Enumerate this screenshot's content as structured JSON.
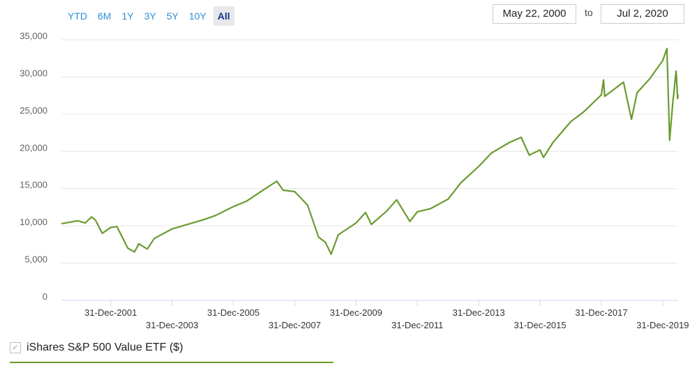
{
  "range_buttons": [
    "YTD",
    "6M",
    "1Y",
    "3Y",
    "5Y",
    "10Y",
    "All"
  ],
  "active_range": "All",
  "date_range": {
    "from": "May 22, 2000",
    "to_label": "to",
    "to": "Jul 2, 2020"
  },
  "legend": {
    "label": "iShares S&P 500 Value ETF ($)",
    "checked": true
  },
  "colors": {
    "line": "#6a9a2f",
    "grid": "#e6e6e6",
    "button": "#2a8fd6",
    "active_button": "#1c2f88"
  },
  "chart_data": {
    "type": "line",
    "title": "",
    "xlabel": "",
    "ylabel": "",
    "ylim": [
      0,
      35000
    ],
    "yticks": [
      0,
      5000,
      10000,
      15000,
      20000,
      25000,
      30000,
      35000
    ],
    "ytick_labels": [
      "0",
      "5,000",
      "10,000",
      "15,000",
      "20,000",
      "25,000",
      "30,000",
      "35,000"
    ],
    "xlim": [
      "2000-05-22",
      "2020-07-02"
    ],
    "xticks": [
      {
        "date": "2001-12-31",
        "label": "31-Dec-2001",
        "row": 1
      },
      {
        "date": "2003-12-31",
        "label": "31-Dec-2003",
        "row": 2
      },
      {
        "date": "2005-12-31",
        "label": "31-Dec-2005",
        "row": 1
      },
      {
        "date": "2007-12-31",
        "label": "31-Dec-2007",
        "row": 2
      },
      {
        "date": "2009-12-31",
        "label": "31-Dec-2009",
        "row": 1
      },
      {
        "date": "2011-12-31",
        "label": "31-Dec-2011",
        "row": 2
      },
      {
        "date": "2013-12-31",
        "label": "31-Dec-2013",
        "row": 1
      },
      {
        "date": "2015-12-31",
        "label": "31-Dec-2015",
        "row": 2
      },
      {
        "date": "2017-12-31",
        "label": "31-Dec-2017",
        "row": 1
      },
      {
        "date": "2019-12-31",
        "label": "31-Dec-2019",
        "row": 2
      }
    ],
    "series": [
      {
        "name": "iShares S&P 500 Value ETF ($)",
        "points": [
          [
            "2000-05-22",
            10300
          ],
          [
            "2000-09-01",
            10500
          ],
          [
            "2000-12-01",
            10700
          ],
          [
            "2001-03-01",
            10400
          ],
          [
            "2001-05-15",
            11200
          ],
          [
            "2001-07-01",
            10800
          ],
          [
            "2001-09-21",
            9000
          ],
          [
            "2001-12-31",
            9800
          ],
          [
            "2002-03-15",
            9900
          ],
          [
            "2002-07-23",
            7000
          ],
          [
            "2002-10-09",
            6500
          ],
          [
            "2002-12-01",
            7600
          ],
          [
            "2003-03-11",
            6900
          ],
          [
            "2003-06-01",
            8300
          ],
          [
            "2003-12-31",
            9600
          ],
          [
            "2004-06-01",
            10100
          ],
          [
            "2004-12-31",
            10800
          ],
          [
            "2005-06-01",
            11400
          ],
          [
            "2005-12-31",
            12600
          ],
          [
            "2006-06-01",
            13300
          ],
          [
            "2006-12-31",
            14900
          ],
          [
            "2007-06-01",
            16000
          ],
          [
            "2007-08-15",
            14800
          ],
          [
            "2007-12-31",
            14600
          ],
          [
            "2008-06-01",
            12800
          ],
          [
            "2008-10-10",
            8500
          ],
          [
            "2008-12-31",
            7800
          ],
          [
            "2009-03-09",
            6200
          ],
          [
            "2009-06-01",
            8800
          ],
          [
            "2009-12-31",
            10400
          ],
          [
            "2010-04-23",
            11800
          ],
          [
            "2010-07-01",
            10200
          ],
          [
            "2010-12-31",
            12000
          ],
          [
            "2011-04-29",
            13500
          ],
          [
            "2011-10-03",
            10600
          ],
          [
            "2011-12-31",
            11900
          ],
          [
            "2012-06-01",
            12300
          ],
          [
            "2012-12-31",
            13600
          ],
          [
            "2013-06-01",
            15800
          ],
          [
            "2013-12-31",
            18000
          ],
          [
            "2014-06-01",
            19800
          ],
          [
            "2014-12-31",
            21200
          ],
          [
            "2015-05-20",
            21900
          ],
          [
            "2015-08-25",
            19500
          ],
          [
            "2015-12-31",
            20200
          ],
          [
            "2016-02-11",
            19200
          ],
          [
            "2016-06-01",
            21200
          ],
          [
            "2016-12-31",
            24000
          ],
          [
            "2017-06-01",
            25300
          ],
          [
            "2017-12-31",
            27600
          ],
          [
            "2018-01-26",
            29600
          ],
          [
            "2018-02-08",
            27400
          ],
          [
            "2018-09-20",
            29300
          ],
          [
            "2018-12-24",
            24300
          ],
          [
            "2019-03-01",
            27900
          ],
          [
            "2019-07-26",
            29700
          ],
          [
            "2019-12-31",
            32200
          ],
          [
            "2020-02-19",
            33800
          ],
          [
            "2020-03-23",
            21500
          ],
          [
            "2020-04-29",
            26500
          ],
          [
            "2020-06-08",
            30800
          ],
          [
            "2020-06-26",
            27100
          ],
          [
            "2020-07-02",
            27600
          ]
        ]
      }
    ]
  }
}
